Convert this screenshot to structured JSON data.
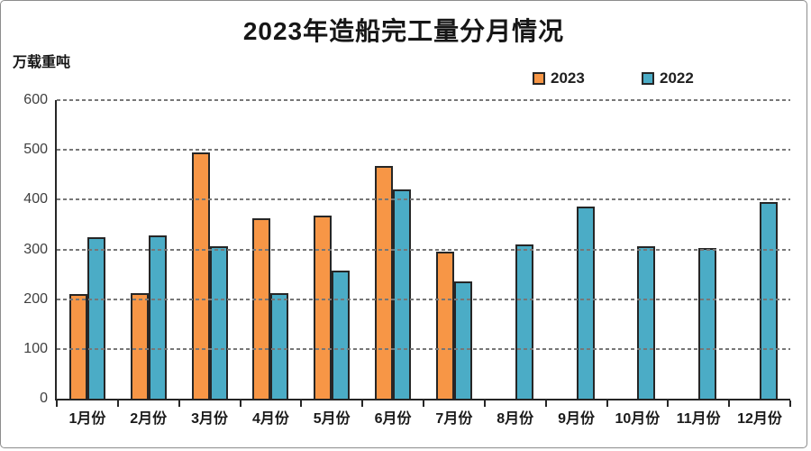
{
  "title": "2023年造船完工量分月情况",
  "y_axis_unit": "万载重吨",
  "colors": {
    "series_2023": "#F79646",
    "series_2022": "#4BACC6",
    "bar_border": "#262626",
    "grid": "#777777",
    "axis": "#262626",
    "frame_border": "#8d8d8d"
  },
  "chart_data": {
    "type": "bar",
    "title": "2023年造船完工量分月情况",
    "xlabel": "",
    "ylabel": "万载重吨",
    "categories": [
      "1月份",
      "2月份",
      "3月份",
      "4月份",
      "5月份",
      "6月份",
      "7月份",
      "8月份",
      "9月份",
      "10月份",
      "11月份",
      "12月份"
    ],
    "series": [
      {
        "name": "2023",
        "color": "#F79646",
        "values": [
          210,
          213,
          495,
          363,
          368,
          467,
          295,
          null,
          null,
          null,
          null,
          null
        ]
      },
      {
        "name": "2022",
        "color": "#4BACC6",
        "values": [
          325,
          328,
          307,
          212,
          258,
          421,
          235,
          310,
          387,
          307,
          302,
          395
        ]
      }
    ],
    "ylim": [
      0,
      600
    ],
    "y_ticks": [
      0,
      100,
      200,
      300,
      400,
      500,
      600
    ],
    "grid": "horizontal-dashed",
    "legend_position": "top-right-inside"
  }
}
